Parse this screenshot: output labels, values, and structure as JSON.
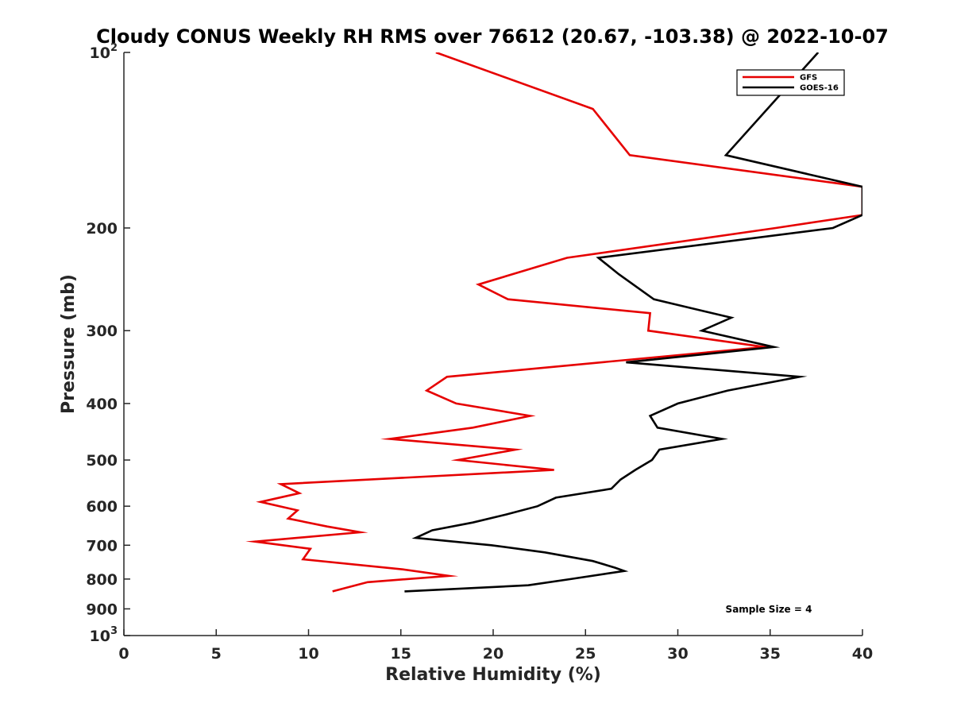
{
  "chart_data": {
    "type": "line",
    "title": "Cloudy CONUS Weekly RH RMS over 76612 (20.67, -103.38) @ 2022-10-07",
    "xlabel": "Relative Humidity (%)",
    "ylabel": "Pressure (mb)",
    "xlim": [
      0,
      40
    ],
    "ylim": [
      100,
      1000
    ],
    "yscale": "log",
    "y_reversed": true,
    "grid": false,
    "legend_position": "top-right",
    "x_ticks": [
      0,
      5,
      10,
      15,
      20,
      25,
      30,
      35,
      40
    ],
    "x_tick_labels": [
      "0",
      "5",
      "10",
      "15",
      "20",
      "25",
      "30",
      "35",
      "40"
    ],
    "y_ticks": [
      100,
      200,
      300,
      400,
      500,
      600,
      700,
      800,
      900,
      1000
    ],
    "y_tick_labels": [
      {
        "base": "10",
        "sup": "2"
      },
      {
        "text": "200"
      },
      {
        "text": "300"
      },
      {
        "text": "400"
      },
      {
        "text": "500"
      },
      {
        "text": "600"
      },
      {
        "text": "700"
      },
      {
        "text": "800"
      },
      {
        "text": "900"
      },
      {
        "base": "10",
        "sup": "3"
      }
    ],
    "series": [
      {
        "name": "GFS",
        "color": "#e60000",
        "points": [
          [
            16.9,
            100
          ],
          [
            25.4,
            125
          ],
          [
            27.4,
            150
          ],
          [
            40.0,
            170
          ],
          [
            40.0,
            190
          ],
          [
            35.3,
            200
          ],
          [
            24.0,
            225
          ],
          [
            19.2,
            250
          ],
          [
            20.8,
            265
          ],
          [
            28.5,
            280
          ],
          [
            28.4,
            300
          ],
          [
            34.7,
            320
          ],
          [
            17.5,
            360
          ],
          [
            16.4,
            380
          ],
          [
            18.0,
            400
          ],
          [
            22.0,
            420
          ],
          [
            18.9,
            440
          ],
          [
            14.4,
            460
          ],
          [
            21.2,
            480
          ],
          [
            18.1,
            500
          ],
          [
            23.3,
            520
          ],
          [
            8.5,
            550
          ],
          [
            9.5,
            570
          ],
          [
            7.4,
            590
          ],
          [
            9.4,
            610
          ],
          [
            8.9,
            630
          ],
          [
            11.0,
            650
          ],
          [
            12.8,
            665
          ],
          [
            7.1,
            690
          ],
          [
            10.1,
            710
          ],
          [
            9.7,
            740
          ],
          [
            15.1,
            770
          ],
          [
            17.6,
            790
          ],
          [
            13.2,
            810
          ],
          [
            11.3,
            840
          ]
        ]
      },
      {
        "name": "GOES-16",
        "color": "#000000",
        "points": [
          [
            37.6,
            100
          ],
          [
            32.6,
            150
          ],
          [
            40.0,
            170
          ],
          [
            40.0,
            190
          ],
          [
            38.4,
            200
          ],
          [
            25.7,
            225
          ],
          [
            26.8,
            240
          ],
          [
            28.7,
            265
          ],
          [
            32.9,
            285
          ],
          [
            31.3,
            300
          ],
          [
            35.2,
            320
          ],
          [
            27.2,
            340
          ],
          [
            36.6,
            360
          ],
          [
            32.7,
            380
          ],
          [
            30.0,
            400
          ],
          [
            28.5,
            420
          ],
          [
            28.9,
            440
          ],
          [
            32.4,
            460
          ],
          [
            29.0,
            480
          ],
          [
            28.6,
            500
          ],
          [
            27.7,
            520
          ],
          [
            26.9,
            540
          ],
          [
            26.4,
            560
          ],
          [
            23.4,
            580
          ],
          [
            22.4,
            600
          ],
          [
            20.7,
            620
          ],
          [
            18.9,
            640
          ],
          [
            16.7,
            660
          ],
          [
            15.8,
            680
          ],
          [
            19.9,
            700
          ],
          [
            22.8,
            720
          ],
          [
            25.4,
            745
          ],
          [
            26.6,
            765
          ],
          [
            27.1,
            775
          ],
          [
            24.2,
            800
          ],
          [
            21.9,
            820
          ],
          [
            15.2,
            840
          ]
        ]
      }
    ],
    "annotation": "Sample Size = 4"
  }
}
